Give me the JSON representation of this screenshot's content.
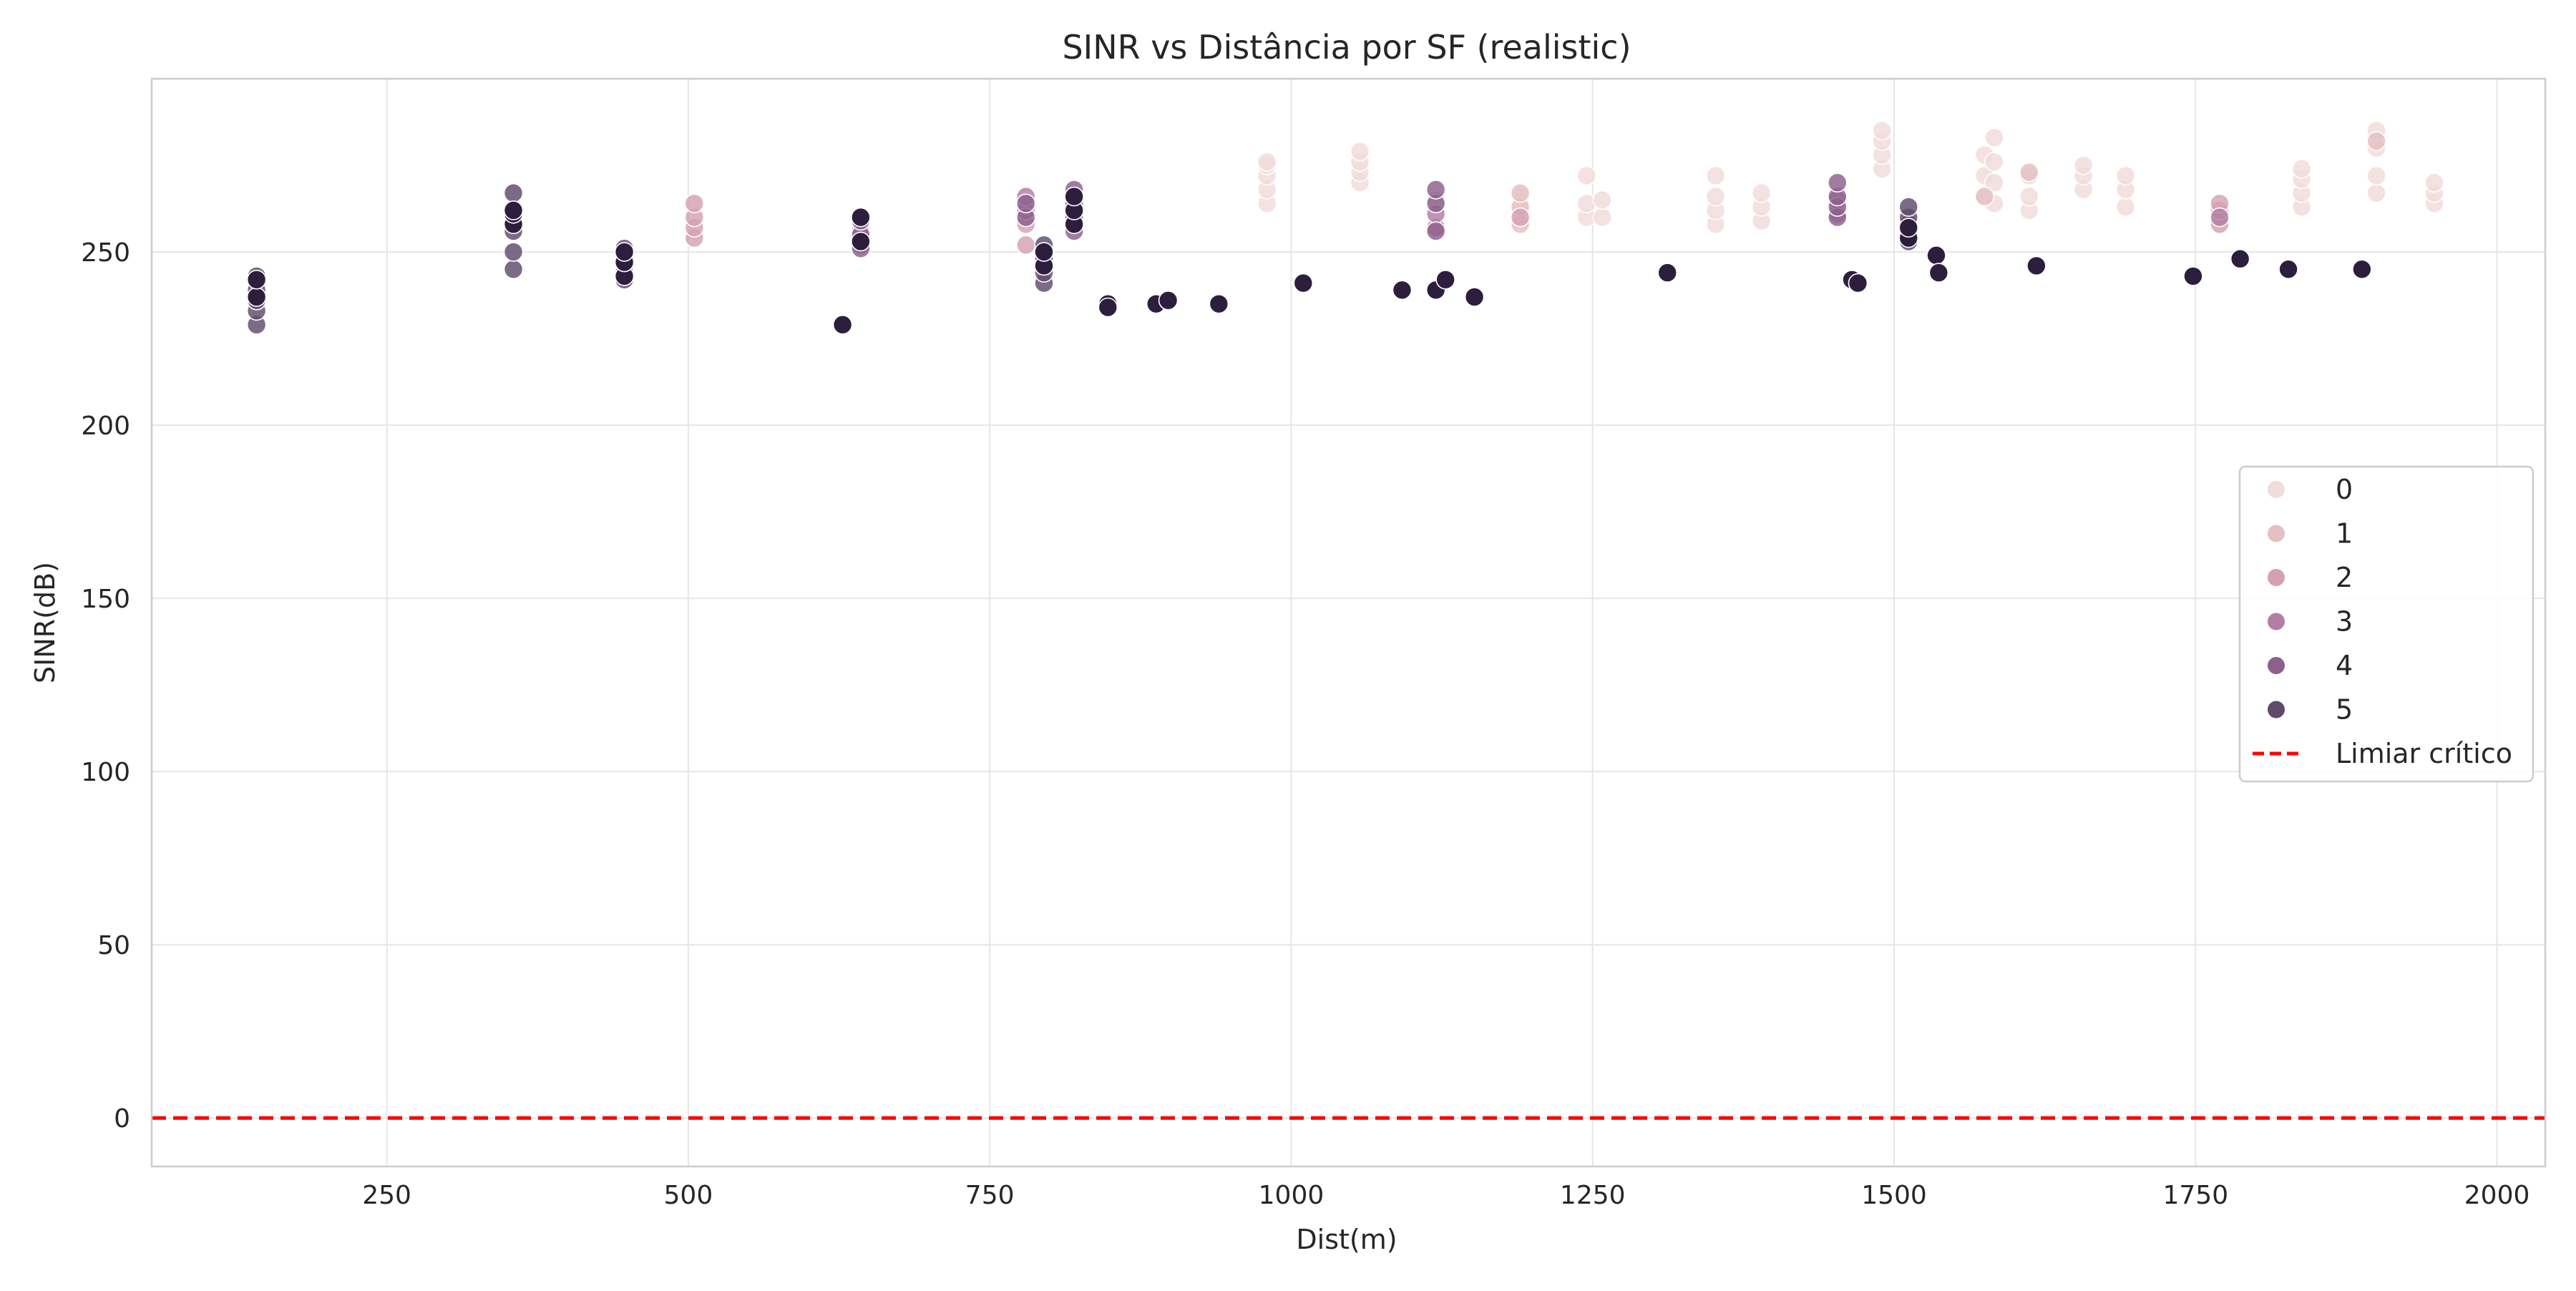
{
  "chart_data": {
    "type": "scatter",
    "title": "SINR vs Distância por SF (realistic)",
    "xlabel": "Dist(m)",
    "ylabel": "SINR(dB)",
    "xlim": [
      55,
      2040
    ],
    "ylim": [
      -14,
      300
    ],
    "xticks": [
      250,
      500,
      750,
      1000,
      1250,
      1500,
      1750,
      2000
    ],
    "yticks": [
      0,
      50,
      100,
      150,
      200,
      250
    ],
    "grid": true,
    "legend": {
      "position": "center-right",
      "entries": [
        "0",
        "1",
        "2",
        "3",
        "4",
        "5",
        "Limiar crítico"
      ]
    },
    "threshold": {
      "name": "Limiar crítico",
      "y": 0,
      "color": "#ff0000",
      "style": "dashed"
    },
    "series": [
      {
        "name": "0",
        "color": "#f0dcda",
        "points": [
          [
            980,
            264
          ],
          [
            980,
            268
          ],
          [
            980,
            272
          ],
          [
            980,
            275
          ],
          [
            980,
            276
          ],
          [
            1057,
            270
          ],
          [
            1057,
            273
          ],
          [
            1057,
            276
          ],
          [
            1057,
            279
          ],
          [
            1190,
            262
          ],
          [
            1190,
            266
          ],
          [
            1245,
            260
          ],
          [
            1245,
            264
          ],
          [
            1245,
            272
          ],
          [
            1258,
            260
          ],
          [
            1258,
            265
          ],
          [
            1352,
            258
          ],
          [
            1352,
            262
          ],
          [
            1352,
            266
          ],
          [
            1352,
            272
          ],
          [
            1390,
            259
          ],
          [
            1390,
            263
          ],
          [
            1390,
            267
          ],
          [
            1490,
            274
          ],
          [
            1490,
            278
          ],
          [
            1490,
            282
          ],
          [
            1490,
            285
          ],
          [
            1575,
            266
          ],
          [
            1575,
            272
          ],
          [
            1575,
            278
          ],
          [
            1583,
            264
          ],
          [
            1583,
            270
          ],
          [
            1583,
            276
          ],
          [
            1583,
            283
          ],
          [
            1612,
            262
          ],
          [
            1612,
            266
          ],
          [
            1612,
            272
          ],
          [
            1657,
            268
          ],
          [
            1657,
            272
          ],
          [
            1657,
            275
          ],
          [
            1692,
            263
          ],
          [
            1692,
            268
          ],
          [
            1692,
            272
          ],
          [
            1838,
            263
          ],
          [
            1838,
            267
          ],
          [
            1838,
            271
          ],
          [
            1838,
            274
          ],
          [
            1900,
            267
          ],
          [
            1900,
            272
          ],
          [
            1900,
            280
          ],
          [
            1900,
            285
          ],
          [
            1948,
            264
          ],
          [
            1948,
            267
          ],
          [
            1948,
            270
          ]
        ]
      },
      {
        "name": "1",
        "color": "#e4c0c2",
        "points": [
          [
            1120,
            265
          ],
          [
            1190,
            258
          ],
          [
            1190,
            263
          ],
          [
            1190,
            267
          ],
          [
            1575,
            266
          ],
          [
            1900,
            282
          ],
          [
            1612,
            273
          ]
        ]
      },
      {
        "name": "2",
        "color": "#d4a1b2",
        "points": [
          [
            505,
            254
          ],
          [
            505,
            257
          ],
          [
            505,
            260
          ],
          [
            505,
            264
          ],
          [
            780,
            252
          ],
          [
            780,
            258
          ],
          [
            1190,
            260
          ],
          [
            1770,
            258
          ],
          [
            1770,
            262
          ],
          [
            1770,
            264
          ]
        ]
      },
      {
        "name": "3",
        "color": "#b27ea3",
        "points": [
          [
            643,
            252
          ],
          [
            643,
            256
          ],
          [
            780,
            262
          ],
          [
            780,
            266
          ],
          [
            1120,
            257
          ],
          [
            1120,
            261
          ],
          [
            1453,
            261
          ],
          [
            1453,
            265
          ],
          [
            1770,
            260
          ]
        ]
      },
      {
        "name": "4",
        "color": "#8c5f8c",
        "points": [
          [
            643,
            251
          ],
          [
            643,
            255
          ],
          [
            643,
            259
          ],
          [
            780,
            260
          ],
          [
            780,
            264
          ],
          [
            820,
            256
          ],
          [
            820,
            260
          ],
          [
            820,
            264
          ],
          [
            820,
            268
          ],
          [
            1120,
            256
          ],
          [
            1120,
            264
          ],
          [
            1120,
            268
          ],
          [
            1453,
            260
          ],
          [
            1453,
            263
          ],
          [
            1453,
            266
          ],
          [
            1453,
            270
          ]
        ]
      },
      {
        "name": "5",
        "color": "#5f4a6b",
        "points": [
          [
            142,
            229
          ],
          [
            142,
            233
          ],
          [
            142,
            236
          ],
          [
            142,
            239
          ],
          [
            142,
            243
          ],
          [
            355,
            245
          ],
          [
            355,
            250
          ],
          [
            355,
            256
          ],
          [
            355,
            260
          ],
          [
            355,
            267
          ],
          [
            447,
            242
          ],
          [
            447,
            244
          ],
          [
            447,
            248
          ],
          [
            447,
            251
          ],
          [
            795,
            241
          ],
          [
            795,
            244
          ],
          [
            795,
            248
          ],
          [
            795,
            252
          ],
          [
            1512,
            253
          ],
          [
            1512,
            256
          ],
          [
            1512,
            258
          ],
          [
            1512,
            260
          ],
          [
            1512,
            263
          ]
        ]
      },
      {
        "name": "",
        "color": "#2d1e3e",
        "points": [
          [
            142,
            237
          ],
          [
            142,
            242
          ],
          [
            355,
            258
          ],
          [
            355,
            261
          ],
          [
            355,
            262
          ],
          [
            447,
            243
          ],
          [
            447,
            247
          ],
          [
            447,
            250
          ],
          [
            628,
            229
          ],
          [
            643,
            253
          ],
          [
            643,
            260
          ],
          [
            795,
            246
          ],
          [
            795,
            250
          ],
          [
            820,
            258
          ],
          [
            820,
            262
          ],
          [
            820,
            266
          ],
          [
            848,
            235
          ],
          [
            848,
            234
          ],
          [
            888,
            235
          ],
          [
            898,
            236
          ],
          [
            940,
            235
          ],
          [
            1010,
            241
          ],
          [
            1092,
            239
          ],
          [
            1120,
            239
          ],
          [
            1128,
            242
          ],
          [
            1152,
            237
          ],
          [
            1312,
            244
          ],
          [
            1465,
            242
          ],
          [
            1470,
            241
          ],
          [
            1512,
            254
          ],
          [
            1512,
            257
          ],
          [
            1535,
            249
          ],
          [
            1537,
            244
          ],
          [
            1618,
            246
          ],
          [
            1748,
            243
          ],
          [
            1787,
            248
          ],
          [
            1827,
            245
          ],
          [
            1888,
            245
          ]
        ]
      }
    ]
  }
}
